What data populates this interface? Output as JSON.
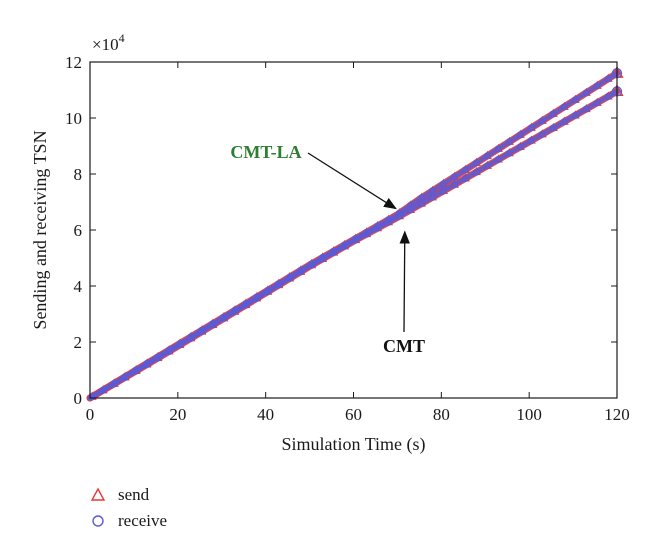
{
  "chart_data": {
    "type": "scatter",
    "xlabel": "Simulation Time (s)",
    "ylabel": "Sending and receiving TSN",
    "multiplier": "×10",
    "multiplier_exp": "4",
    "xlim": [
      0,
      120
    ],
    "ylim": [
      0,
      12
    ],
    "xticks": [
      0,
      20,
      40,
      60,
      80,
      100,
      120
    ],
    "yticks": [
      0,
      2,
      4,
      6,
      8,
      10,
      12
    ],
    "series": [
      {
        "name": "send",
        "marker": "triangle",
        "color": "#e53935",
        "curves": [
          {
            "x": [
              0,
              10,
              20,
              30,
              40,
              50,
              60,
              70,
              75,
              80,
              90,
              100,
              110,
              120
            ],
            "y": [
              0,
              0.95,
              1.9,
              2.85,
              3.8,
              4.75,
              5.65,
              6.55,
              7.1,
              7.6,
              8.6,
              9.6,
              10.6,
              11.6
            ]
          },
          {
            "x": [
              0,
              10,
              20,
              30,
              40,
              50,
              60,
              70,
              75,
              80,
              90,
              100,
              110,
              120
            ],
            "y": [
              0,
              0.92,
              1.85,
              2.8,
              3.75,
              4.7,
              5.6,
              6.45,
              6.9,
              7.35,
              8.25,
              9.15,
              10.05,
              10.95
            ]
          }
        ]
      },
      {
        "name": "receive",
        "marker": "circle",
        "color": "#5b5bd6",
        "curves": [
          {
            "x": [
              0,
              10,
              20,
              30,
              40,
              50,
              60,
              70,
              75,
              80,
              90,
              100,
              110,
              120
            ],
            "y": [
              0,
              0.95,
              1.9,
              2.85,
              3.8,
              4.75,
              5.65,
              6.55,
              7.1,
              7.6,
              8.6,
              9.6,
              10.6,
              11.6
            ]
          },
          {
            "x": [
              0,
              10,
              20,
              30,
              40,
              50,
              60,
              70,
              75,
              80,
              90,
              100,
              110,
              120
            ],
            "y": [
              0,
              0.92,
              1.85,
              2.8,
              3.75,
              4.7,
              5.6,
              6.45,
              6.9,
              7.35,
              8.25,
              9.15,
              10.05,
              10.95
            ]
          }
        ]
      }
    ],
    "annotations": [
      {
        "text": "CMT-LA",
        "color": "#2e7d32",
        "point_to": [
          71,
          6.55
        ]
      },
      {
        "text": "CMT",
        "color": "#111111",
        "point_to": [
          71,
          6.15
        ]
      }
    ],
    "legend_position": "bottom-left",
    "grid": false
  }
}
